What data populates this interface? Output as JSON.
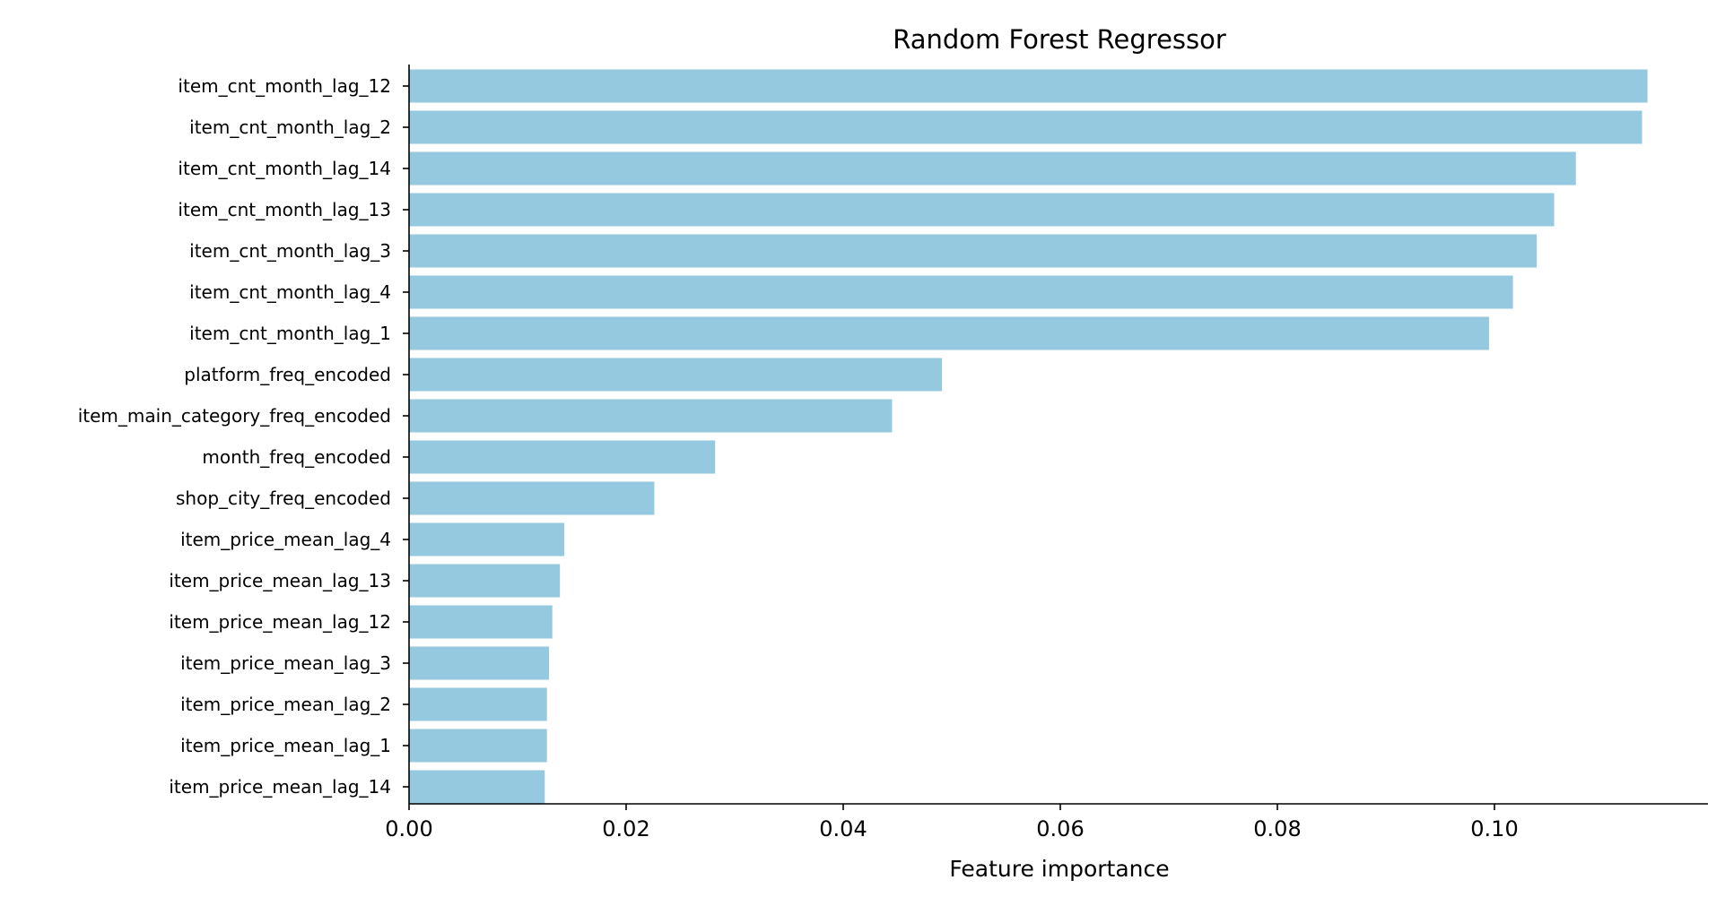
{
  "chart_data": {
    "type": "bar",
    "orientation": "horizontal",
    "title": "Random Forest Regressor",
    "xlabel": "Feature importance",
    "ylabel": "",
    "xlim": [
      0,
      0.12
    ],
    "xticks": [
      0.0,
      0.02,
      0.04,
      0.06,
      0.08,
      0.1
    ],
    "xtick_labels": [
      "0.00",
      "0.02",
      "0.04",
      "0.06",
      "0.08",
      "0.10"
    ],
    "grid": false,
    "bar_color": "#95c9df",
    "categories": [
      "item_cnt_month_lag_12",
      "item_cnt_month_lag_2",
      "item_cnt_month_lag_14",
      "item_cnt_month_lag_13",
      "item_cnt_month_lag_3",
      "item_cnt_month_lag_4",
      "item_cnt_month_lag_1",
      "platform_freq_encoded",
      "item_main_category_freq_encoded",
      "month_freq_encoded",
      "shop_city_freq_encoded",
      "item_price_mean_lag_4",
      "item_price_mean_lag_13",
      "item_price_mean_lag_12",
      "item_price_mean_lag_3",
      "item_price_mean_lag_2",
      "item_price_mean_lag_1",
      "item_price_mean_lag_14"
    ],
    "values": [
      0.1141,
      0.1136,
      0.1075,
      0.1055,
      0.1039,
      0.1017,
      0.0995,
      0.0491,
      0.0445,
      0.0282,
      0.0226,
      0.0143,
      0.0139,
      0.0132,
      0.0129,
      0.0127,
      0.0127,
      0.0125
    ]
  }
}
